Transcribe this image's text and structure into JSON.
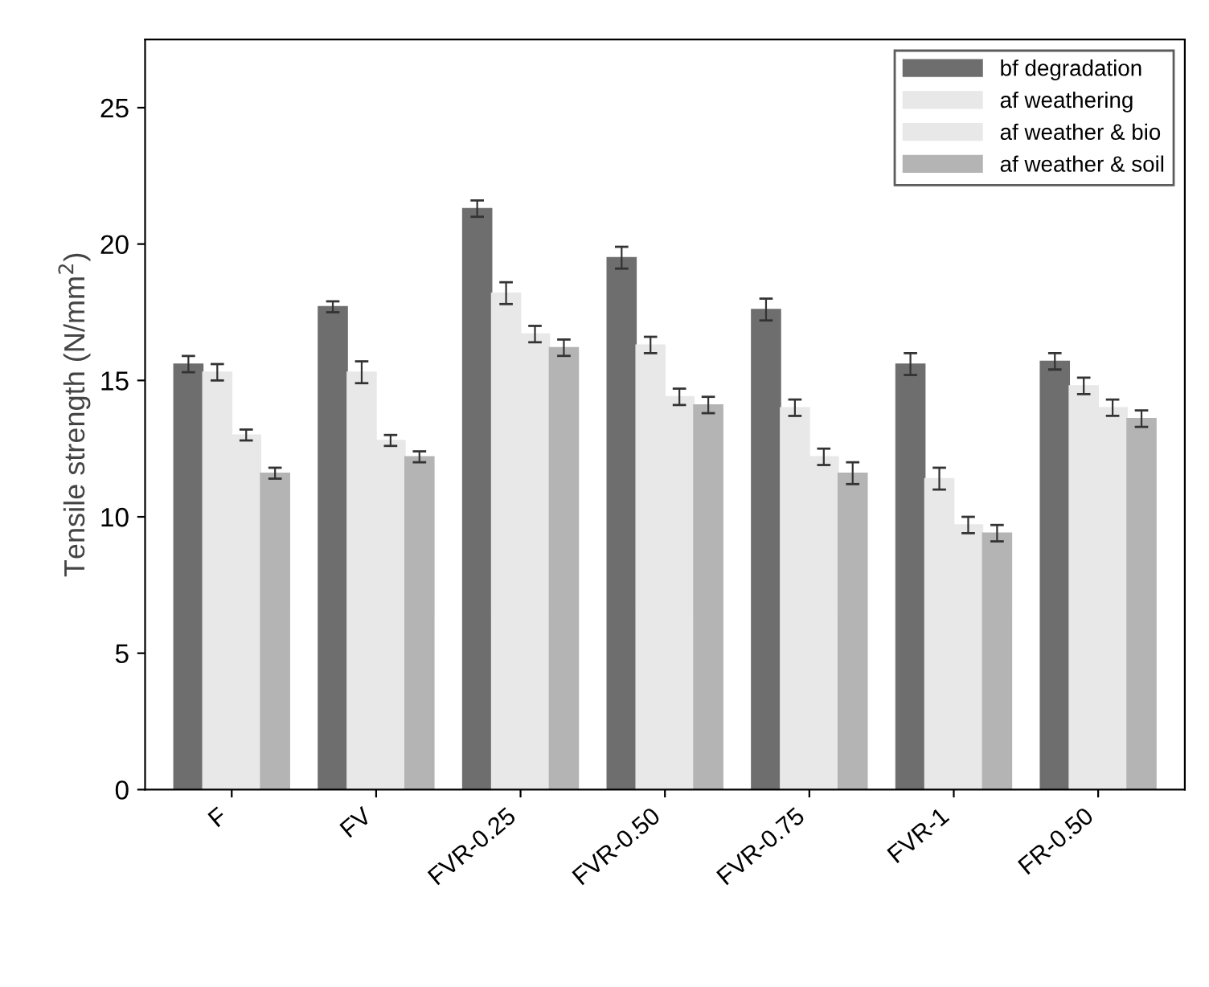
{
  "chart_data": {
    "type": "bar",
    "ylabel": "Tensile strength (N/mm$^{2}$)",
    "categories": [
      "F",
      "FV",
      "FVR-0.25",
      "FVR-0.50",
      "FVR-0.75",
      "FVR-1",
      "FR-0.50"
    ],
    "series": [
      {
        "name": "bf degradation",
        "color": "#6e6e6e",
        "values": [
          15.6,
          17.7,
          21.3,
          19.5,
          17.6,
          15.6,
          15.7
        ],
        "errors": [
          0.3,
          0.2,
          0.3,
          0.4,
          0.4,
          0.4,
          0.3
        ]
      },
      {
        "name": "af weathering",
        "color": "#e8e8e8",
        "values": [
          15.3,
          15.3,
          18.2,
          16.3,
          14.0,
          11.4,
          14.8
        ],
        "errors": [
          0.3,
          0.4,
          0.4,
          0.3,
          0.3,
          0.4,
          0.3
        ]
      },
      {
        "name": "af weather & bio",
        "color": "#e8e8e8",
        "values": [
          13.0,
          12.8,
          16.7,
          14.4,
          12.2,
          9.7,
          14.0
        ],
        "errors": [
          0.2,
          0.2,
          0.3,
          0.3,
          0.3,
          0.3,
          0.3
        ]
      },
      {
        "name": "af weather & soil",
        "color": "#b4b4b4",
        "values": [
          11.6,
          12.2,
          16.2,
          14.1,
          11.6,
          9.4,
          13.6
        ],
        "errors": [
          0.2,
          0.2,
          0.3,
          0.3,
          0.4,
          0.3,
          0.3
        ]
      }
    ],
    "ylim": [
      0,
      27.5
    ],
    "yticks": [
      0,
      5,
      10,
      15,
      20,
      25
    ],
    "grid": false,
    "legend": "top right"
  }
}
